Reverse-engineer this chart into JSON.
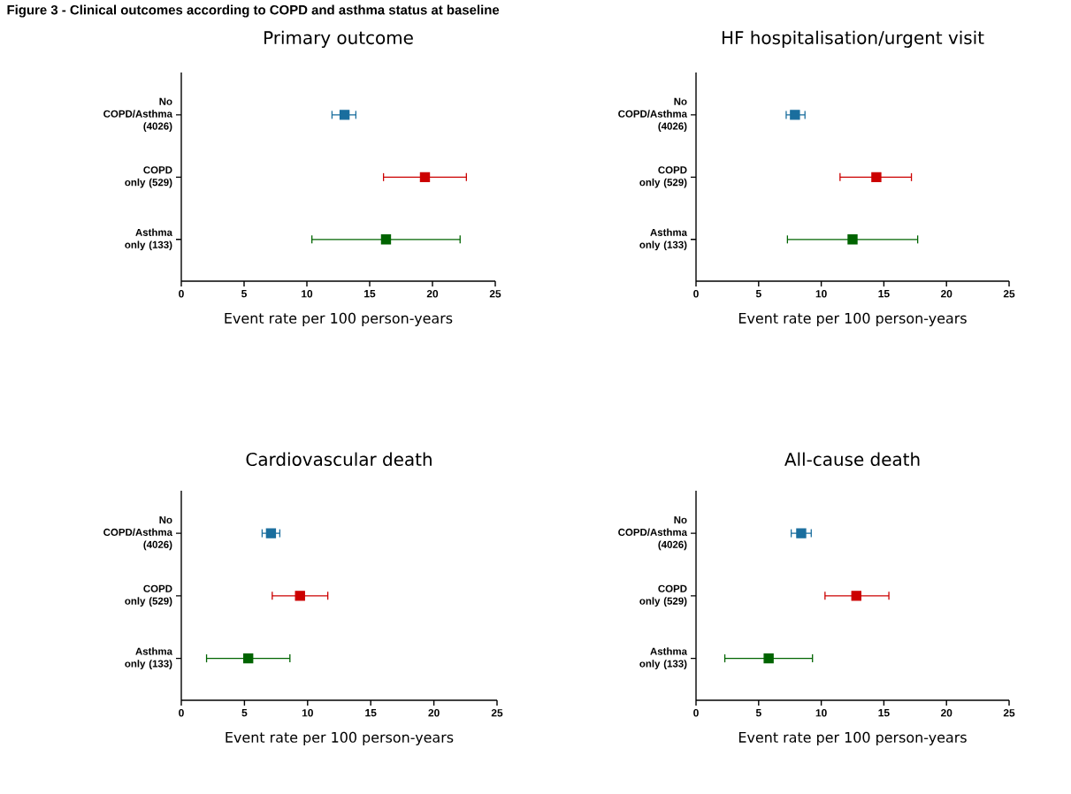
{
  "chart_data": [
    {
      "type": "scatter",
      "orientation": "horizontal",
      "title": "Primary outcome",
      "xlabel": "Event rate per 100 person-years",
      "annotations": [
        "Figure 3 - Clinical outcomes according to COPD and asthma status at baseline"
      ],
      "categories": [
        "No COPD/Asthma (4026)",
        "COPD only (529)",
        "Asthma only (133)"
      ],
      "values": [
        13.0,
        19.4,
        16.3
      ],
      "errors": [
        [
          12.0,
          13.9
        ],
        [
          16.1,
          22.7
        ],
        [
          10.4,
          22.2
        ]
      ],
      "colors": [
        "#1a6e9e",
        "#cc0000",
        "#006400"
      ],
      "marker": "square",
      "xlim": [
        0,
        25
      ],
      "xticks": [
        0,
        5,
        10,
        15,
        20,
        25
      ]
    },
    {
      "type": "scatter",
      "orientation": "horizontal",
      "title": "HF hospitalisation/urgent visit",
      "xlabel": "Event rate per 100 person-years",
      "categories": [
        "No COPD/Asthma (4026)",
        "COPD only (529)",
        "Asthma only (133)"
      ],
      "values": [
        7.9,
        14.4,
        12.5
      ],
      "errors": [
        [
          7.2,
          8.7
        ],
        [
          11.5,
          17.2
        ],
        [
          7.3,
          17.7
        ]
      ],
      "colors": [
        "#1a6e9e",
        "#cc0000",
        "#006400"
      ],
      "marker": "square",
      "xlim": [
        0,
        25
      ],
      "xticks": [
        0,
        5,
        10,
        15,
        20,
        25
      ]
    },
    {
      "type": "scatter",
      "orientation": "horizontal",
      "title": "Cardiovascular death",
      "xlabel": "Event rate per 100 person-years",
      "categories": [
        "No COPD/Asthma (4026)",
        "COPD only (529)",
        "Asthma only (133)"
      ],
      "values": [
        7.1,
        9.4,
        5.3
      ],
      "errors": [
        [
          6.4,
          7.8
        ],
        [
          7.2,
          11.6
        ],
        [
          2.0,
          8.6
        ]
      ],
      "colors": [
        "#1a6e9e",
        "#cc0000",
        "#006400"
      ],
      "marker": "square",
      "xlim": [
        0,
        25
      ],
      "xticks": [
        0,
        5,
        10,
        15,
        20,
        25
      ]
    },
    {
      "type": "scatter",
      "orientation": "horizontal",
      "title": "All-cause death",
      "xlabel": "Event rate per 100 person-years",
      "categories": [
        "No COPD/Asthma (4026)",
        "COPD only (529)",
        "Asthma only (133)"
      ],
      "values": [
        8.4,
        12.8,
        5.8
      ],
      "errors": [
        [
          7.6,
          9.2
        ],
        [
          10.3,
          15.4
        ],
        [
          2.3,
          9.3
        ]
      ],
      "colors": [
        "#1a6e9e",
        "#cc0000",
        "#006400"
      ],
      "marker": "square",
      "xlim": [
        0,
        25
      ],
      "xticks": [
        0,
        5,
        10,
        15,
        20,
        25
      ]
    }
  ]
}
